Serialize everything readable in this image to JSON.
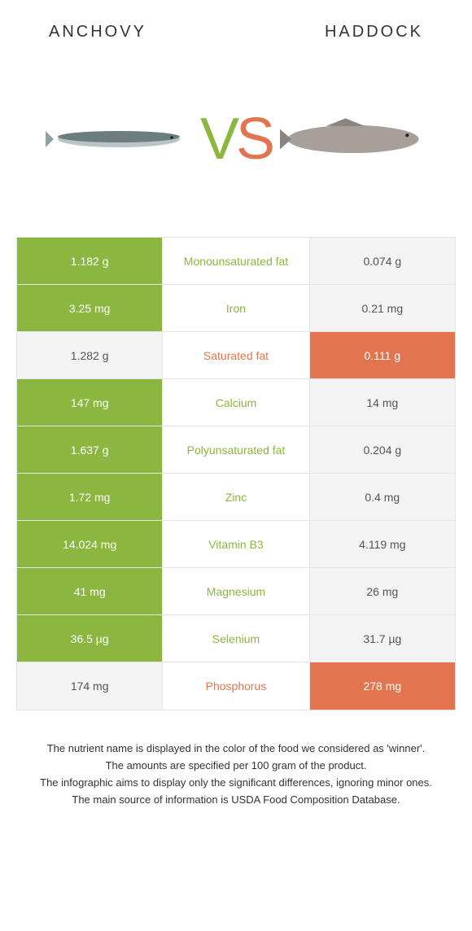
{
  "header": {
    "left_title": "Anchovy",
    "right_title": "Haddock"
  },
  "vs": {
    "v": "V",
    "s": "S"
  },
  "colors": {
    "left_accent": "#8bb63f",
    "right_accent": "#e2754f",
    "loser_bg": "#f3f3f3",
    "border": "#e6e6e6",
    "background": "#ffffff"
  },
  "rows": [
    {
      "label": "Monounsaturated fat",
      "left": "1.182 g",
      "right": "0.074 g",
      "winner": "left"
    },
    {
      "label": "Iron",
      "left": "3.25 mg",
      "right": "0.21 mg",
      "winner": "left"
    },
    {
      "label": "Saturated fat",
      "left": "1.282 g",
      "right": "0.111 g",
      "winner": "right"
    },
    {
      "label": "Calcium",
      "left": "147 mg",
      "right": "14 mg",
      "winner": "left"
    },
    {
      "label": "Polyunsaturated fat",
      "left": "1.637 g",
      "right": "0.204 g",
      "winner": "left"
    },
    {
      "label": "Zinc",
      "left": "1.72 mg",
      "right": "0.4 mg",
      "winner": "left"
    },
    {
      "label": "Vitamin B3",
      "left": "14.024 mg",
      "right": "4.119 mg",
      "winner": "left"
    },
    {
      "label": "Magnesium",
      "left": "41 mg",
      "right": "26 mg",
      "winner": "left"
    },
    {
      "label": "Selenium",
      "left": "36.5 µg",
      "right": "31.7 µg",
      "winner": "left"
    },
    {
      "label": "Phosphorus",
      "left": "174 mg",
      "right": "278 mg",
      "winner": "right"
    }
  ],
  "footnotes": [
    "The nutrient name is displayed in the color of the food we considered as 'winner'.",
    "The amounts are specified per 100 gram of the product.",
    "The infographic aims to display only the significant differences, ignoring minor ones.",
    "The main source of information is USDA Food Composition Database."
  ]
}
